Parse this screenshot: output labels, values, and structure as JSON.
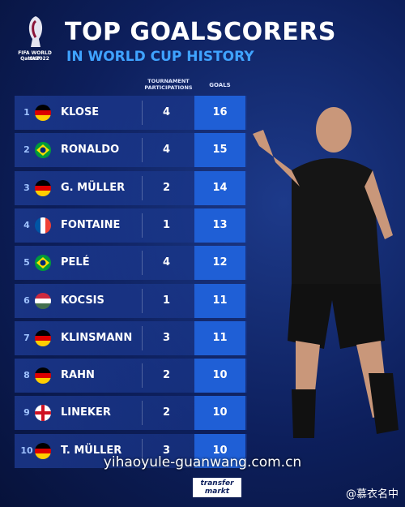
{
  "header": {
    "logo": {
      "line1": "FIFA WORLD CUP",
      "line2": "Qatar2022"
    },
    "title": "TOP GOALSCORERS",
    "subtitle": "IN WORLD CUP HISTORY"
  },
  "table": {
    "columns": [
      "TOURNAMENT PARTICIPATIONS",
      "GOALS"
    ],
    "rows": [
      {
        "rank": 1,
        "name": "KLOSE",
        "participations": 4,
        "goals": 16
      },
      {
        "rank": 2,
        "name": "RONALDO",
        "participations": 4,
        "goals": 15
      },
      {
        "rank": 3,
        "name": "G. MÜLLER",
        "participations": 2,
        "goals": 14
      },
      {
        "rank": 4,
        "name": "FONTAINE",
        "participations": 1,
        "goals": 13
      },
      {
        "rank": 5,
        "name": "PELÉ",
        "participations": 4,
        "goals": 12
      },
      {
        "rank": 6,
        "name": "KOCSIS",
        "participations": 1,
        "goals": 11
      },
      {
        "rank": 7,
        "name": "KLINSMANN",
        "participations": 3,
        "goals": 11
      },
      {
        "rank": 8,
        "name": "RAHN",
        "participations": 2,
        "goals": 10
      },
      {
        "rank": 9,
        "name": "LINEKER",
        "participations": 2,
        "goals": 10
      },
      {
        "rank": 10,
        "name": "T. MÜLLER",
        "participations": 3,
        "goals": 10
      }
    ]
  },
  "watermark": "yihaoyule-guanwang.com.cn",
  "footer": {
    "brand": [
      "transfer",
      "markt"
    ],
    "credit": "@慕衣名中"
  }
}
